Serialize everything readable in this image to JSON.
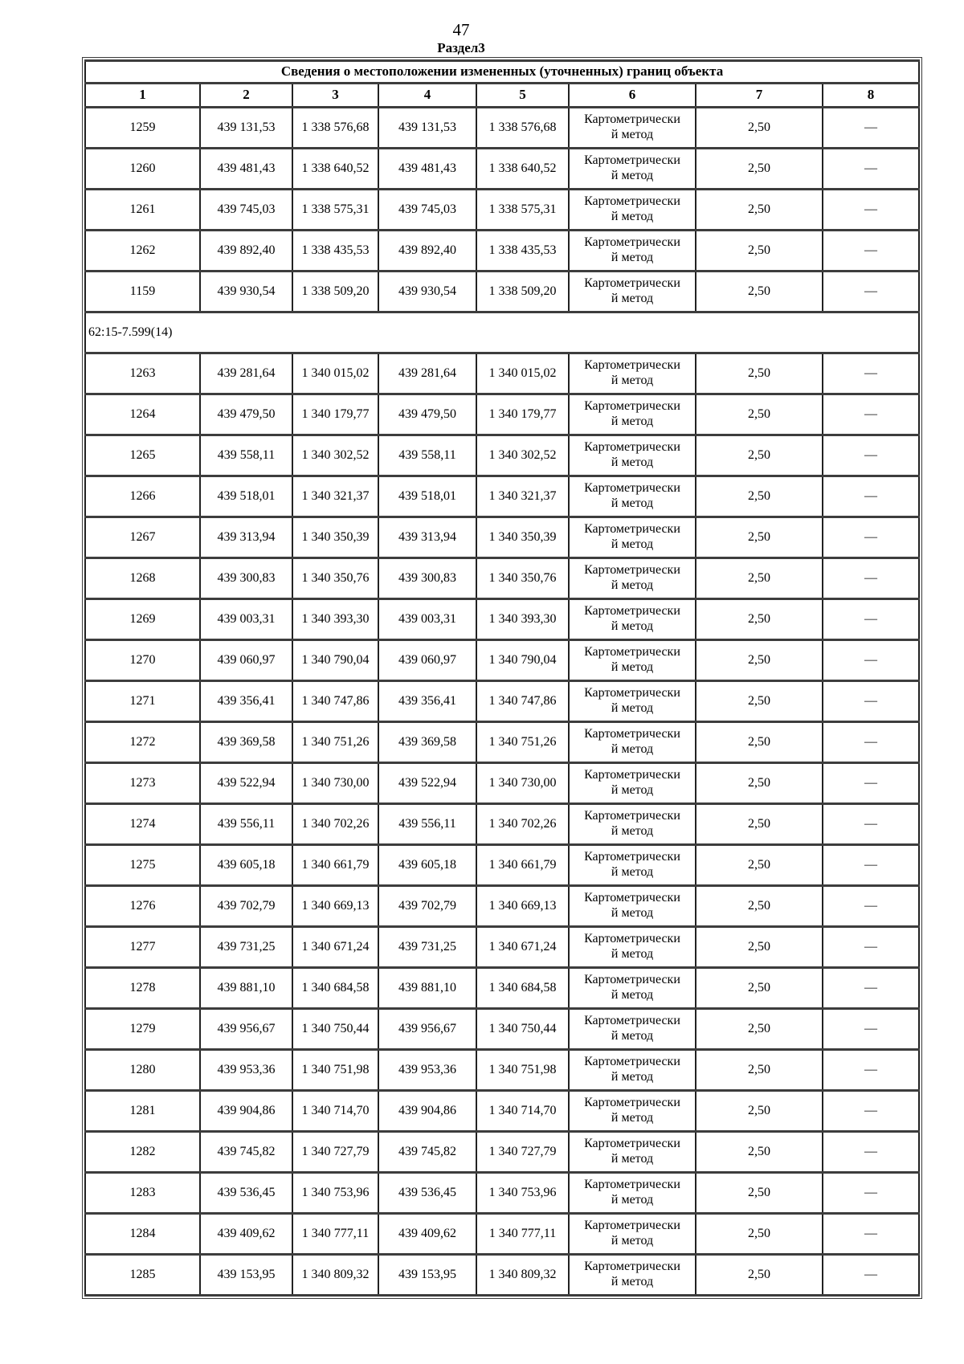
{
  "page": {
    "number": "47",
    "section_title": "Раздел3"
  },
  "table": {
    "title": "Сведения о местоположении измененных (уточненных) границ объекта",
    "column_headers": [
      "1",
      "2",
      "3",
      "4",
      "5",
      "6",
      "7",
      "8"
    ],
    "groups": [
      {
        "rows": [
          [
            "1259",
            "439 131,53",
            "1 338 576,68",
            "439 131,53",
            "1 338 576,68",
            "Картометрически\nй метод",
            "2,50",
            "—"
          ],
          [
            "1260",
            "439 481,43",
            "1 338 640,52",
            "439 481,43",
            "1 338 640,52",
            "Картометрически\nй метод",
            "2,50",
            "—"
          ],
          [
            "1261",
            "439 745,03",
            "1 338 575,31",
            "439 745,03",
            "1 338 575,31",
            "Картометрически\nй метод",
            "2,50",
            "—"
          ],
          [
            "1262",
            "439 892,40",
            "1 338 435,53",
            "439 892,40",
            "1 338 435,53",
            "Картометрически\nй метод",
            "2,50",
            "—"
          ],
          [
            "1159",
            "439 930,54",
            "1 338 509,20",
            "439 930,54",
            "1 338 509,20",
            "Картометрически\nй метод",
            "2,50",
            "—"
          ]
        ]
      },
      {
        "label": "62:15-7.599(14)",
        "rows": [
          [
            "1263",
            "439 281,64",
            "1 340 015,02",
            "439 281,64",
            "1 340 015,02",
            "Картометрически\nй метод",
            "2,50",
            "—"
          ],
          [
            "1264",
            "439 479,50",
            "1 340 179,77",
            "439 479,50",
            "1 340 179,77",
            "Картометрически\nй метод",
            "2,50",
            "—"
          ],
          [
            "1265",
            "439 558,11",
            "1 340 302,52",
            "439 558,11",
            "1 340 302,52",
            "Картометрически\nй метод",
            "2,50",
            "—"
          ],
          [
            "1266",
            "439 518,01",
            "1 340 321,37",
            "439 518,01",
            "1 340 321,37",
            "Картометрически\nй метод",
            "2,50",
            "—"
          ],
          [
            "1267",
            "439 313,94",
            "1 340 350,39",
            "439 313,94",
            "1 340 350,39",
            "Картометрически\nй метод",
            "2,50",
            "—"
          ],
          [
            "1268",
            "439 300,83",
            "1 340 350,76",
            "439 300,83",
            "1 340 350,76",
            "Картометрически\nй метод",
            "2,50",
            "—"
          ],
          [
            "1269",
            "439 003,31",
            "1 340 393,30",
            "439 003,31",
            "1 340 393,30",
            "Картометрически\nй метод",
            "2,50",
            "—"
          ],
          [
            "1270",
            "439 060,97",
            "1 340 790,04",
            "439 060,97",
            "1 340 790,04",
            "Картометрически\nй метод",
            "2,50",
            "—"
          ],
          [
            "1271",
            "439 356,41",
            "1 340 747,86",
            "439 356,41",
            "1 340 747,86",
            "Картометрически\nй метод",
            "2,50",
            "—"
          ],
          [
            "1272",
            "439 369,58",
            "1 340 751,26",
            "439 369,58",
            "1 340 751,26",
            "Картометрически\nй метод",
            "2,50",
            "—"
          ],
          [
            "1273",
            "439 522,94",
            "1 340 730,00",
            "439 522,94",
            "1 340 730,00",
            "Картометрически\nй метод",
            "2,50",
            "—"
          ],
          [
            "1274",
            "439 556,11",
            "1 340 702,26",
            "439 556,11",
            "1 340 702,26",
            "Картометрически\nй метод",
            "2,50",
            "—"
          ],
          [
            "1275",
            "439 605,18",
            "1 340 661,79",
            "439 605,18",
            "1 340 661,79",
            "Картометрически\nй метод",
            "2,50",
            "—"
          ],
          [
            "1276",
            "439 702,79",
            "1 340 669,13",
            "439 702,79",
            "1 340 669,13",
            "Картометрически\nй метод",
            "2,50",
            "—"
          ],
          [
            "1277",
            "439 731,25",
            "1 340 671,24",
            "439 731,25",
            "1 340 671,24",
            "Картометрически\nй метод",
            "2,50",
            "—"
          ],
          [
            "1278",
            "439 881,10",
            "1 340 684,58",
            "439 881,10",
            "1 340 684,58",
            "Картометрически\nй метод",
            "2,50",
            "—"
          ],
          [
            "1279",
            "439 956,67",
            "1 340 750,44",
            "439 956,67",
            "1 340 750,44",
            "Картометрически\nй метод",
            "2,50",
            "—"
          ],
          [
            "1280",
            "439 953,36",
            "1 340 751,98",
            "439 953,36",
            "1 340 751,98",
            "Картометрически\nй метод",
            "2,50",
            "—"
          ],
          [
            "1281",
            "439 904,86",
            "1 340 714,70",
            "439 904,86",
            "1 340 714,70",
            "Картометрически\nй метод",
            "2,50",
            "—"
          ],
          [
            "1282",
            "439 745,82",
            "1 340 727,79",
            "439 745,82",
            "1 340 727,79",
            "Картометрически\nй метод",
            "2,50",
            "—"
          ],
          [
            "1283",
            "439 536,45",
            "1 340 753,96",
            "439 536,45",
            "1 340 753,96",
            "Картометрически\nй метод",
            "2,50",
            "—"
          ],
          [
            "1284",
            "439 409,62",
            "1 340 777,11",
            "439 409,62",
            "1 340 777,11",
            "Картометрически\nй метод",
            "2,50",
            "—"
          ],
          [
            "1285",
            "439 153,95",
            "1 340 809,32",
            "439 153,95",
            "1 340 809,32",
            "Картометрически\nй метод",
            "2,50",
            "—"
          ]
        ]
      }
    ]
  }
}
